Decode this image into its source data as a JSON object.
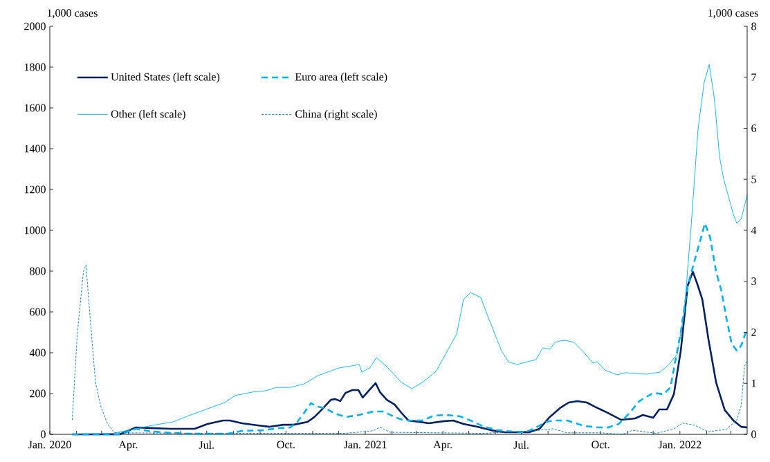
{
  "chart_data": {
    "type": "line",
    "ylabel": "1,000 cases",
    "y2label": "1,000 cases",
    "xlim": [
      "2020-01-01",
      "2022-03-20"
    ],
    "xticks": [
      {
        "value": "2020-01-01",
        "label": "Jan. 2020"
      },
      {
        "value": "2020-02-01",
        "label": null
      },
      {
        "value": "2020-03-01",
        "label": null
      },
      {
        "value": "2020-04-01",
        "label": "Apr."
      },
      {
        "value": "2020-05-01",
        "label": null
      },
      {
        "value": "2020-06-01",
        "label": null
      },
      {
        "value": "2020-07-01",
        "label": "Jul."
      },
      {
        "value": "2020-08-01",
        "label": null
      },
      {
        "value": "2020-09-01",
        "label": null
      },
      {
        "value": "2020-10-01",
        "label": "Oct."
      },
      {
        "value": "2020-11-01",
        "label": null
      },
      {
        "value": "2020-12-01",
        "label": null
      },
      {
        "value": "2021-01-01",
        "label": "Jan. 2021"
      },
      {
        "value": "2021-02-01",
        "label": null
      },
      {
        "value": "2021-03-01",
        "label": null
      },
      {
        "value": "2021-04-01",
        "label": "Apr."
      },
      {
        "value": "2021-05-01",
        "label": null
      },
      {
        "value": "2021-06-01",
        "label": null
      },
      {
        "value": "2021-07-01",
        "label": "Jul."
      },
      {
        "value": "2021-08-01",
        "label": null
      },
      {
        "value": "2021-09-01",
        "label": null
      },
      {
        "value": "2021-10-01",
        "label": "Oct."
      },
      {
        "value": "2021-11-01",
        "label": null
      },
      {
        "value": "2021-12-01",
        "label": null
      },
      {
        "value": "2022-01-01",
        "label": "Jan. 2022"
      },
      {
        "value": "2022-02-01",
        "label": null
      },
      {
        "value": "2022-03-01",
        "label": null
      }
    ],
    "ylim": [
      0,
      2000
    ],
    "yticks": [
      0,
      200,
      400,
      600,
      800,
      1000,
      1200,
      1400,
      1600,
      1800,
      2000
    ],
    "y2lim": [
      0,
      8
    ],
    "y2ticks": [
      0,
      1,
      2,
      3,
      4,
      5,
      6,
      7,
      8
    ],
    "legend": "top left",
    "grid": false,
    "series": [
      {
        "name": "United States (left scale)",
        "color": "#002060",
        "line_style": "solid",
        "x": [
          "2020-01-27",
          "2020-03-22",
          "2020-04-10",
          "2020-04-26",
          "2020-05-20",
          "2020-06-17",
          "2020-07-02",
          "2020-07-20",
          "2020-07-28",
          "2020-08-11",
          "2020-08-29",
          "2020-09-12",
          "2020-09-28",
          "2020-10-10",
          "2020-10-26",
          "2020-11-03",
          "2020-11-11",
          "2020-11-22",
          "2020-11-27",
          "2020-12-03",
          "2020-12-09",
          "2020-12-17",
          "2020-12-24",
          "2020-12-29",
          "2021-01-05",
          "2021-01-13",
          "2021-01-18",
          "2021-01-26",
          "2021-02-04",
          "2021-02-12",
          "2021-02-20",
          "2021-02-28",
          "2021-03-16",
          "2021-04-01",
          "2021-04-13",
          "2021-04-25",
          "2021-05-11",
          "2021-05-27",
          "2021-06-12",
          "2021-07-04",
          "2021-07-10",
          "2021-07-22",
          "2021-08-03",
          "2021-08-15",
          "2021-08-25",
          "2021-09-04",
          "2021-09-15",
          "2021-09-24",
          "2021-10-06",
          "2021-10-25",
          "2021-11-10",
          "2021-11-19",
          "2021-12-01",
          "2021-12-08",
          "2021-12-17",
          "2021-12-25",
          "2022-01-02",
          "2022-01-10",
          "2022-01-16",
          "2022-01-21",
          "2022-01-27",
          "2022-02-03",
          "2022-02-12",
          "2022-02-22",
          "2022-03-04",
          "2022-03-13",
          "2022-03-20"
        ],
        "values": [
          0,
          0,
          34,
          31,
          27,
          27,
          51,
          68,
          68,
          54,
          44,
          37,
          47,
          47,
          61,
          85,
          119,
          169,
          173,
          163,
          203,
          217,
          217,
          180,
          214,
          251,
          207,
          169,
          146,
          105,
          68,
          64,
          54,
          64,
          68,
          51,
          37,
          20,
          10,
          10,
          10,
          27,
          85,
          129,
          156,
          163,
          156,
          136,
          112,
          71,
          78,
          95,
          81,
          122,
          122,
          197,
          410,
          729,
          797,
          739,
          661,
          468,
          254,
          119,
          68,
          37,
          34
        ]
      },
      {
        "name": "Euro area (left scale)",
        "color": "#00b0f0",
        "line_style": "dashed",
        "x": [
          "2020-01-27",
          "2020-03-22",
          "2020-04-10",
          "2020-04-26",
          "2020-05-11",
          "2020-06-08",
          "2020-07-26",
          "2020-08-11",
          "2020-09-04",
          "2020-09-24",
          "2020-10-06",
          "2020-10-14",
          "2020-10-22",
          "2020-10-30",
          "2020-11-06",
          "2020-11-15",
          "2020-11-27",
          "2020-12-09",
          "2020-12-25",
          "2021-01-10",
          "2021-01-22",
          "2021-02-04",
          "2021-02-15",
          "2021-03-08",
          "2021-03-22",
          "2021-04-05",
          "2021-04-21",
          "2021-05-03",
          "2021-05-19",
          "2021-06-04",
          "2021-06-20",
          "2021-07-06",
          "2021-07-18",
          "2021-07-30",
          "2021-08-07",
          "2021-08-23",
          "2021-09-12",
          "2021-09-28",
          "2021-10-10",
          "2021-10-22",
          "2021-11-03",
          "2021-11-15",
          "2021-12-01",
          "2021-12-13",
          "2021-12-21",
          "2022-01-02",
          "2022-01-10",
          "2022-01-18",
          "2022-01-24",
          "2022-01-30",
          "2022-02-05",
          "2022-02-12",
          "2022-02-18",
          "2022-02-24",
          "2022-03-02",
          "2022-03-08",
          "2022-03-13",
          "2022-03-20"
        ],
        "values": [
          0,
          0,
          27,
          15,
          10,
          3,
          3,
          17,
          20,
          31,
          34,
          61,
          105,
          153,
          136,
          129,
          102,
          85,
          95,
          112,
          112,
          85,
          68,
          68,
          92,
          95,
          88,
          68,
          37,
          20,
          14,
          10,
          34,
          61,
          68,
          68,
          41,
          34,
          34,
          51,
          102,
          163,
          203,
          197,
          230,
          502,
          729,
          851,
          942,
          1034,
          966,
          797,
          705,
          569,
          444,
          410,
          434,
          519
        ]
      },
      {
        "name": "Other (left scale)",
        "color": "#00b0f0",
        "line_style": "solid",
        "x": [
          "2020-01-27",
          "2020-02-19",
          "2020-03-14",
          "2020-04-09",
          "2020-04-29",
          "2020-05-23",
          "2020-06-08",
          "2020-07-02",
          "2020-07-22",
          "2020-08-03",
          "2020-08-23",
          "2020-09-08",
          "2020-09-20",
          "2020-10-06",
          "2020-10-22",
          "2020-11-07",
          "2020-12-01",
          "2020-12-25",
          "2020-12-28",
          "2021-01-06",
          "2021-01-14",
          "2021-01-26",
          "2021-02-12",
          "2021-02-24",
          "2021-03-08",
          "2021-03-24",
          "2021-04-05",
          "2021-04-17",
          "2021-04-25",
          "2021-05-03",
          "2021-05-15",
          "2021-05-23",
          "2021-06-08",
          "2021-06-16",
          "2021-06-26",
          "2021-07-02",
          "2021-07-18",
          "2021-07-26",
          "2021-08-03",
          "2021-08-09",
          "2021-08-15",
          "2021-08-21",
          "2021-08-31",
          "2021-09-12",
          "2021-09-22",
          "2021-09-27",
          "2021-10-06",
          "2021-10-20",
          "2021-10-30",
          "2021-11-23",
          "2021-12-09",
          "2021-12-19",
          "2021-12-29",
          "2022-01-06",
          "2022-01-14",
          "2022-01-22",
          "2022-01-29",
          "2022-02-04",
          "2022-02-10",
          "2022-02-16",
          "2022-02-21",
          "2022-03-04",
          "2022-03-08",
          "2022-03-13",
          "2022-03-20"
        ],
        "values": [
          0,
          3,
          5,
          27,
          44,
          61,
          88,
          125,
          156,
          190,
          207,
          214,
          230,
          230,
          247,
          288,
          325,
          342,
          305,
          325,
          376,
          332,
          254,
          224,
          254,
          308,
          400,
          491,
          661,
          695,
          671,
          580,
          410,
          356,
          342,
          349,
          366,
          424,
          417,
          451,
          458,
          461,
          451,
          400,
          349,
          356,
          315,
          292,
          302,
          295,
          305,
          342,
          393,
          600,
          1020,
          1495,
          1722,
          1813,
          1644,
          1359,
          1247,
          1078,
          1034,
          1054,
          1173
        ]
      },
      {
        "name": "China (right scale)",
        "color": "#0070c0",
        "line_style": "dashed",
        "axis": "y2",
        "x": [
          "2020-01-27",
          "2020-02-02",
          "2020-02-09",
          "2020-02-12",
          "2020-02-17",
          "2020-02-23",
          "2020-02-29",
          "2020-03-08",
          "2020-03-16",
          "2020-07-02",
          "2020-12-09",
          "2021-01-10",
          "2021-01-18",
          "2021-01-30",
          "2021-05-19",
          "2021-07-16",
          "2021-08-07",
          "2021-08-23",
          "2021-10-02",
          "2021-10-26",
          "2021-11-07",
          "2021-12-05",
          "2021-12-25",
          "2022-01-04",
          "2022-01-18",
          "2022-02-03",
          "2022-02-24",
          "2022-03-08",
          "2022-03-13",
          "2022-03-17",
          "2022-03-20"
        ],
        "values": [
          0.28,
          2.0,
          3.19,
          3.32,
          2.24,
          1.02,
          0.56,
          0.2,
          0.03,
          0.02,
          0.02,
          0.07,
          0.14,
          0.04,
          0.02,
          0.07,
          0.11,
          0.03,
          0.03,
          0.0,
          0.08,
          0.02,
          0.11,
          0.22,
          0.18,
          0.05,
          0.1,
          0.28,
          0.56,
          1.33,
          1.46
        ]
      }
    ]
  }
}
